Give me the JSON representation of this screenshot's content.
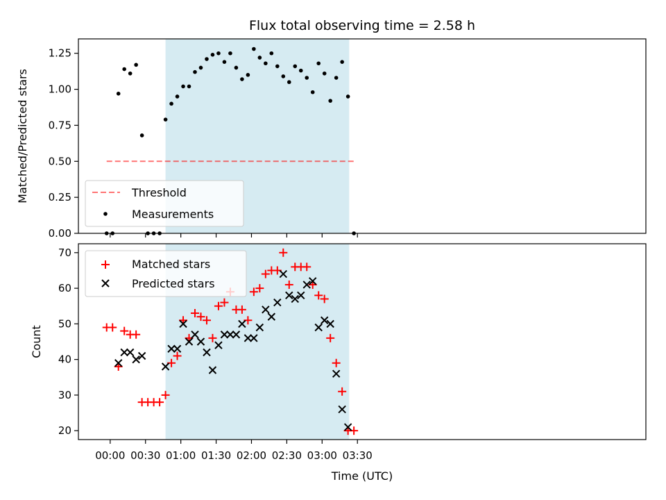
{
  "title": "Flux total observing time = 2.58 h",
  "colors": {
    "span": "#add8e6",
    "threshold": "#ff0000",
    "measurements": "#000000",
    "matched": "#ff0000",
    "predicted": "#000000"
  },
  "chart_data": [
    {
      "type": "scatter",
      "panel": "top",
      "title": "Flux total observing time = 2.58 h",
      "xlabel": "",
      "ylabel": "Matched/Predicted stars",
      "xlim": [
        -27,
        455
      ],
      "ylim": [
        0,
        1.35
      ],
      "grid": false,
      "legend_position": "lower-left",
      "xtick_values": [
        0,
        30,
        60,
        90,
        120,
        150,
        180,
        210
      ],
      "ytick_labels": [
        "0.00",
        "0.25",
        "0.50",
        "0.75",
        "1.00",
        "1.25"
      ],
      "ytick_values": [
        0,
        0.25,
        0.5,
        0.75,
        1.0,
        1.25
      ],
      "highlight_span": [
        47,
        203
      ],
      "threshold": {
        "label": "Threshold",
        "y": 0.5,
        "x_range": [
          -3,
          207
        ]
      },
      "series": [
        {
          "name": "Measurements",
          "marker": "dot",
          "x": [
            -3,
            2,
            7,
            12,
            17,
            22,
            27,
            32,
            37,
            42,
            47,
            52,
            57,
            62,
            67,
            72,
            77,
            82,
            87,
            92,
            97,
            102,
            107,
            112,
            117,
            122,
            127,
            132,
            137,
            142,
            147,
            152,
            157,
            162,
            167,
            172,
            177,
            182,
            187,
            192,
            197,
            202,
            207
          ],
          "values": [
            0.0,
            0.0,
            0.97,
            1.14,
            1.11,
            1.17,
            0.68,
            0.0,
            0.0,
            0.0,
            0.79,
            0.9,
            0.95,
            1.02,
            1.02,
            1.12,
            1.15,
            1.21,
            1.24,
            1.25,
            1.19,
            1.25,
            1.15,
            1.07,
            1.1,
            1.28,
            1.22,
            1.18,
            1.25,
            1.16,
            1.09,
            1.05,
            1.16,
            1.13,
            1.08,
            0.98,
            1.18,
            1.11,
            0.92,
            1.08,
            1.19,
            0.95,
            0.0
          ]
        }
      ]
    },
    {
      "type": "scatter",
      "panel": "bottom",
      "xlabel": "Time (UTC)",
      "ylabel": "Count",
      "xlim": [
        -27,
        455
      ],
      "ylim": [
        17.5,
        72.5
      ],
      "grid": false,
      "legend_position": "upper-left",
      "xtick_labels": [
        "00:00",
        "00:30",
        "01:00",
        "01:30",
        "02:00",
        "02:30",
        "03:00",
        "03:30"
      ],
      "xtick_values": [
        0,
        30,
        60,
        90,
        120,
        150,
        180,
        210
      ],
      "ytick_labels": [
        "20",
        "30",
        "40",
        "50",
        "60",
        "70"
      ],
      "ytick_values": [
        20,
        30,
        40,
        50,
        60,
        70
      ],
      "highlight_span": [
        47,
        203
      ],
      "series": [
        {
          "name": "Matched stars",
          "marker": "plus",
          "x": [
            -3,
            2,
            7,
            12,
            17,
            22,
            27,
            32,
            37,
            42,
            47,
            52,
            57,
            62,
            67,
            72,
            77,
            82,
            87,
            92,
            97,
            102,
            107,
            112,
            117,
            122,
            127,
            132,
            137,
            142,
            147,
            152,
            157,
            162,
            167,
            172,
            177,
            182,
            187,
            192,
            197,
            202,
            207
          ],
          "values": [
            49,
            49,
            38,
            48,
            47,
            47,
            28,
            28,
            28,
            28,
            30,
            39,
            41,
            51,
            46,
            53,
            52,
            51,
            46,
            55,
            56,
            59,
            54,
            54,
            51,
            59,
            60,
            64,
            65,
            65,
            70,
            61,
            66,
            66,
            66,
            61,
            58,
            57,
            46,
            39,
            31,
            20,
            20
          ]
        },
        {
          "name": "Predicted stars",
          "marker": "x",
          "x": [
            7,
            12,
            17,
            22,
            27,
            47,
            52,
            57,
            62,
            67,
            72,
            77,
            82,
            87,
            92,
            97,
            102,
            107,
            112,
            117,
            122,
            127,
            132,
            137,
            142,
            147,
            152,
            157,
            162,
            167,
            172,
            177,
            182,
            187,
            192,
            197,
            202
          ],
          "values": [
            39,
            42,
            42,
            40,
            41,
            38,
            43,
            43,
            50,
            45,
            47,
            45,
            42,
            37,
            44,
            47,
            47,
            47,
            50,
            46,
            46,
            49,
            54,
            52,
            56,
            64,
            58,
            57,
            58,
            61,
            62,
            49,
            51,
            50,
            36,
            26,
            21
          ]
        }
      ]
    }
  ]
}
